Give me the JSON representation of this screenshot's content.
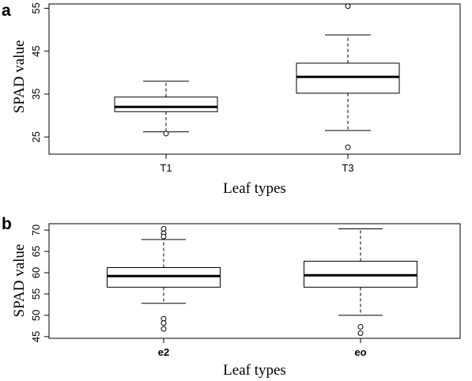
{
  "chart_data": [
    {
      "type": "box",
      "panel": "a",
      "xlabel": "Leaf types",
      "ylabel": "SPAD value",
      "ylim": [
        21,
        56
      ],
      "yticks": [
        25,
        35,
        45,
        55
      ],
      "categories": [
        "T1",
        "T3"
      ],
      "boxes": [
        {
          "category": "T1",
          "whisker_low": 26.2,
          "q1": 30.9,
          "median": 32.0,
          "q3": 34.3,
          "whisker_high": 38.0,
          "outliers": [
            25.8
          ]
        },
        {
          "category": "T3",
          "whisker_low": 26.5,
          "q1": 35.2,
          "median": 39.0,
          "q3": 42.2,
          "whisker_high": 48.8,
          "outliers": [
            55.5,
            22.6
          ]
        }
      ]
    },
    {
      "type": "box",
      "panel": "b",
      "xlabel": "Leaf types",
      "ylabel": "SPAD value",
      "ylim": [
        44.6,
        71.5
      ],
      "yticks": [
        45,
        50,
        55,
        60,
        65,
        70
      ],
      "categories": [
        "e2",
        "eo"
      ],
      "boxes": [
        {
          "category": "e2",
          "whisker_low": 52.8,
          "q1": 56.6,
          "median": 59.2,
          "q3": 61.2,
          "whisker_high": 67.8,
          "outliers": [
            70.3,
            69.2,
            68.5,
            49.2,
            48.2,
            46.8
          ]
        },
        {
          "category": "eo",
          "whisker_low": 50.0,
          "q1": 56.6,
          "median": 59.4,
          "q3": 62.7,
          "whisker_high": 70.3,
          "outliers": [
            47.3,
            45.8
          ]
        }
      ]
    }
  ]
}
